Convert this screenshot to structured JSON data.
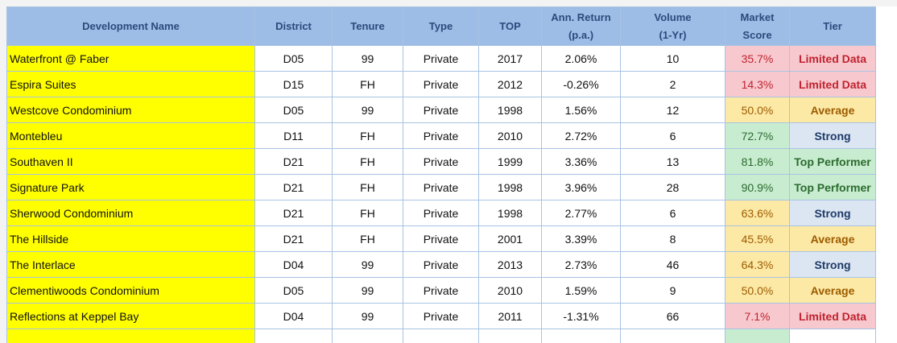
{
  "table": {
    "header": [
      [
        "Development Name"
      ],
      [
        "District"
      ],
      [
        "Tenure"
      ],
      [
        "Type"
      ],
      [
        "TOP"
      ],
      [
        "Ann. Return",
        "(p.a.)"
      ],
      [
        "Volume",
        "(1-Yr)"
      ],
      [
        "Market",
        "Score"
      ],
      [
        "Tier"
      ]
    ],
    "rows": [
      [
        "Waterfront @ Faber",
        "D05",
        "99",
        "Private",
        "2017",
        "2.06%",
        "10",
        "35.7%",
        "Limited Data"
      ],
      [
        "Espira Suites",
        "D15",
        "FH",
        "Private",
        "2012",
        "-0.26%",
        "2",
        "14.3%",
        "Limited Data"
      ],
      [
        "Westcove Condominium",
        "D05",
        "99",
        "Private",
        "1998",
        "1.56%",
        "12",
        "50.0%",
        "Average"
      ],
      [
        "Montebleu",
        "D11",
        "FH",
        "Private",
        "2010",
        "2.72%",
        "6",
        "72.7%",
        "Strong"
      ],
      [
        "Southaven II",
        "D21",
        "FH",
        "Private",
        "1999",
        "3.36%",
        "13",
        "81.8%",
        "Top Performer"
      ],
      [
        "Signature Park",
        "D21",
        "FH",
        "Private",
        "1998",
        "3.96%",
        "28",
        "90.9%",
        "Top Performer"
      ],
      [
        "Sherwood Condominium",
        "D21",
        "FH",
        "Private",
        "1998",
        "2.77%",
        "6",
        "63.6%",
        "Strong"
      ],
      [
        "The Hillside",
        "D21",
        "FH",
        "Private",
        "2001",
        "3.39%",
        "8",
        "45.5%",
        "Average"
      ],
      [
        "The Interlace",
        "D04",
        "99",
        "Private",
        "2013",
        "2.73%",
        "46",
        "64.3%",
        "Strong"
      ],
      [
        "Clementiwoods Condominium",
        "D05",
        "99",
        "Private",
        "2010",
        "1.59%",
        "9",
        "50.0%",
        "Average"
      ],
      [
        "Reflections at Keppel Bay",
        "D04",
        "99",
        "Private",
        "2011",
        "-1.31%",
        "66",
        "7.1%",
        "Limited Data"
      ]
    ]
  }
}
